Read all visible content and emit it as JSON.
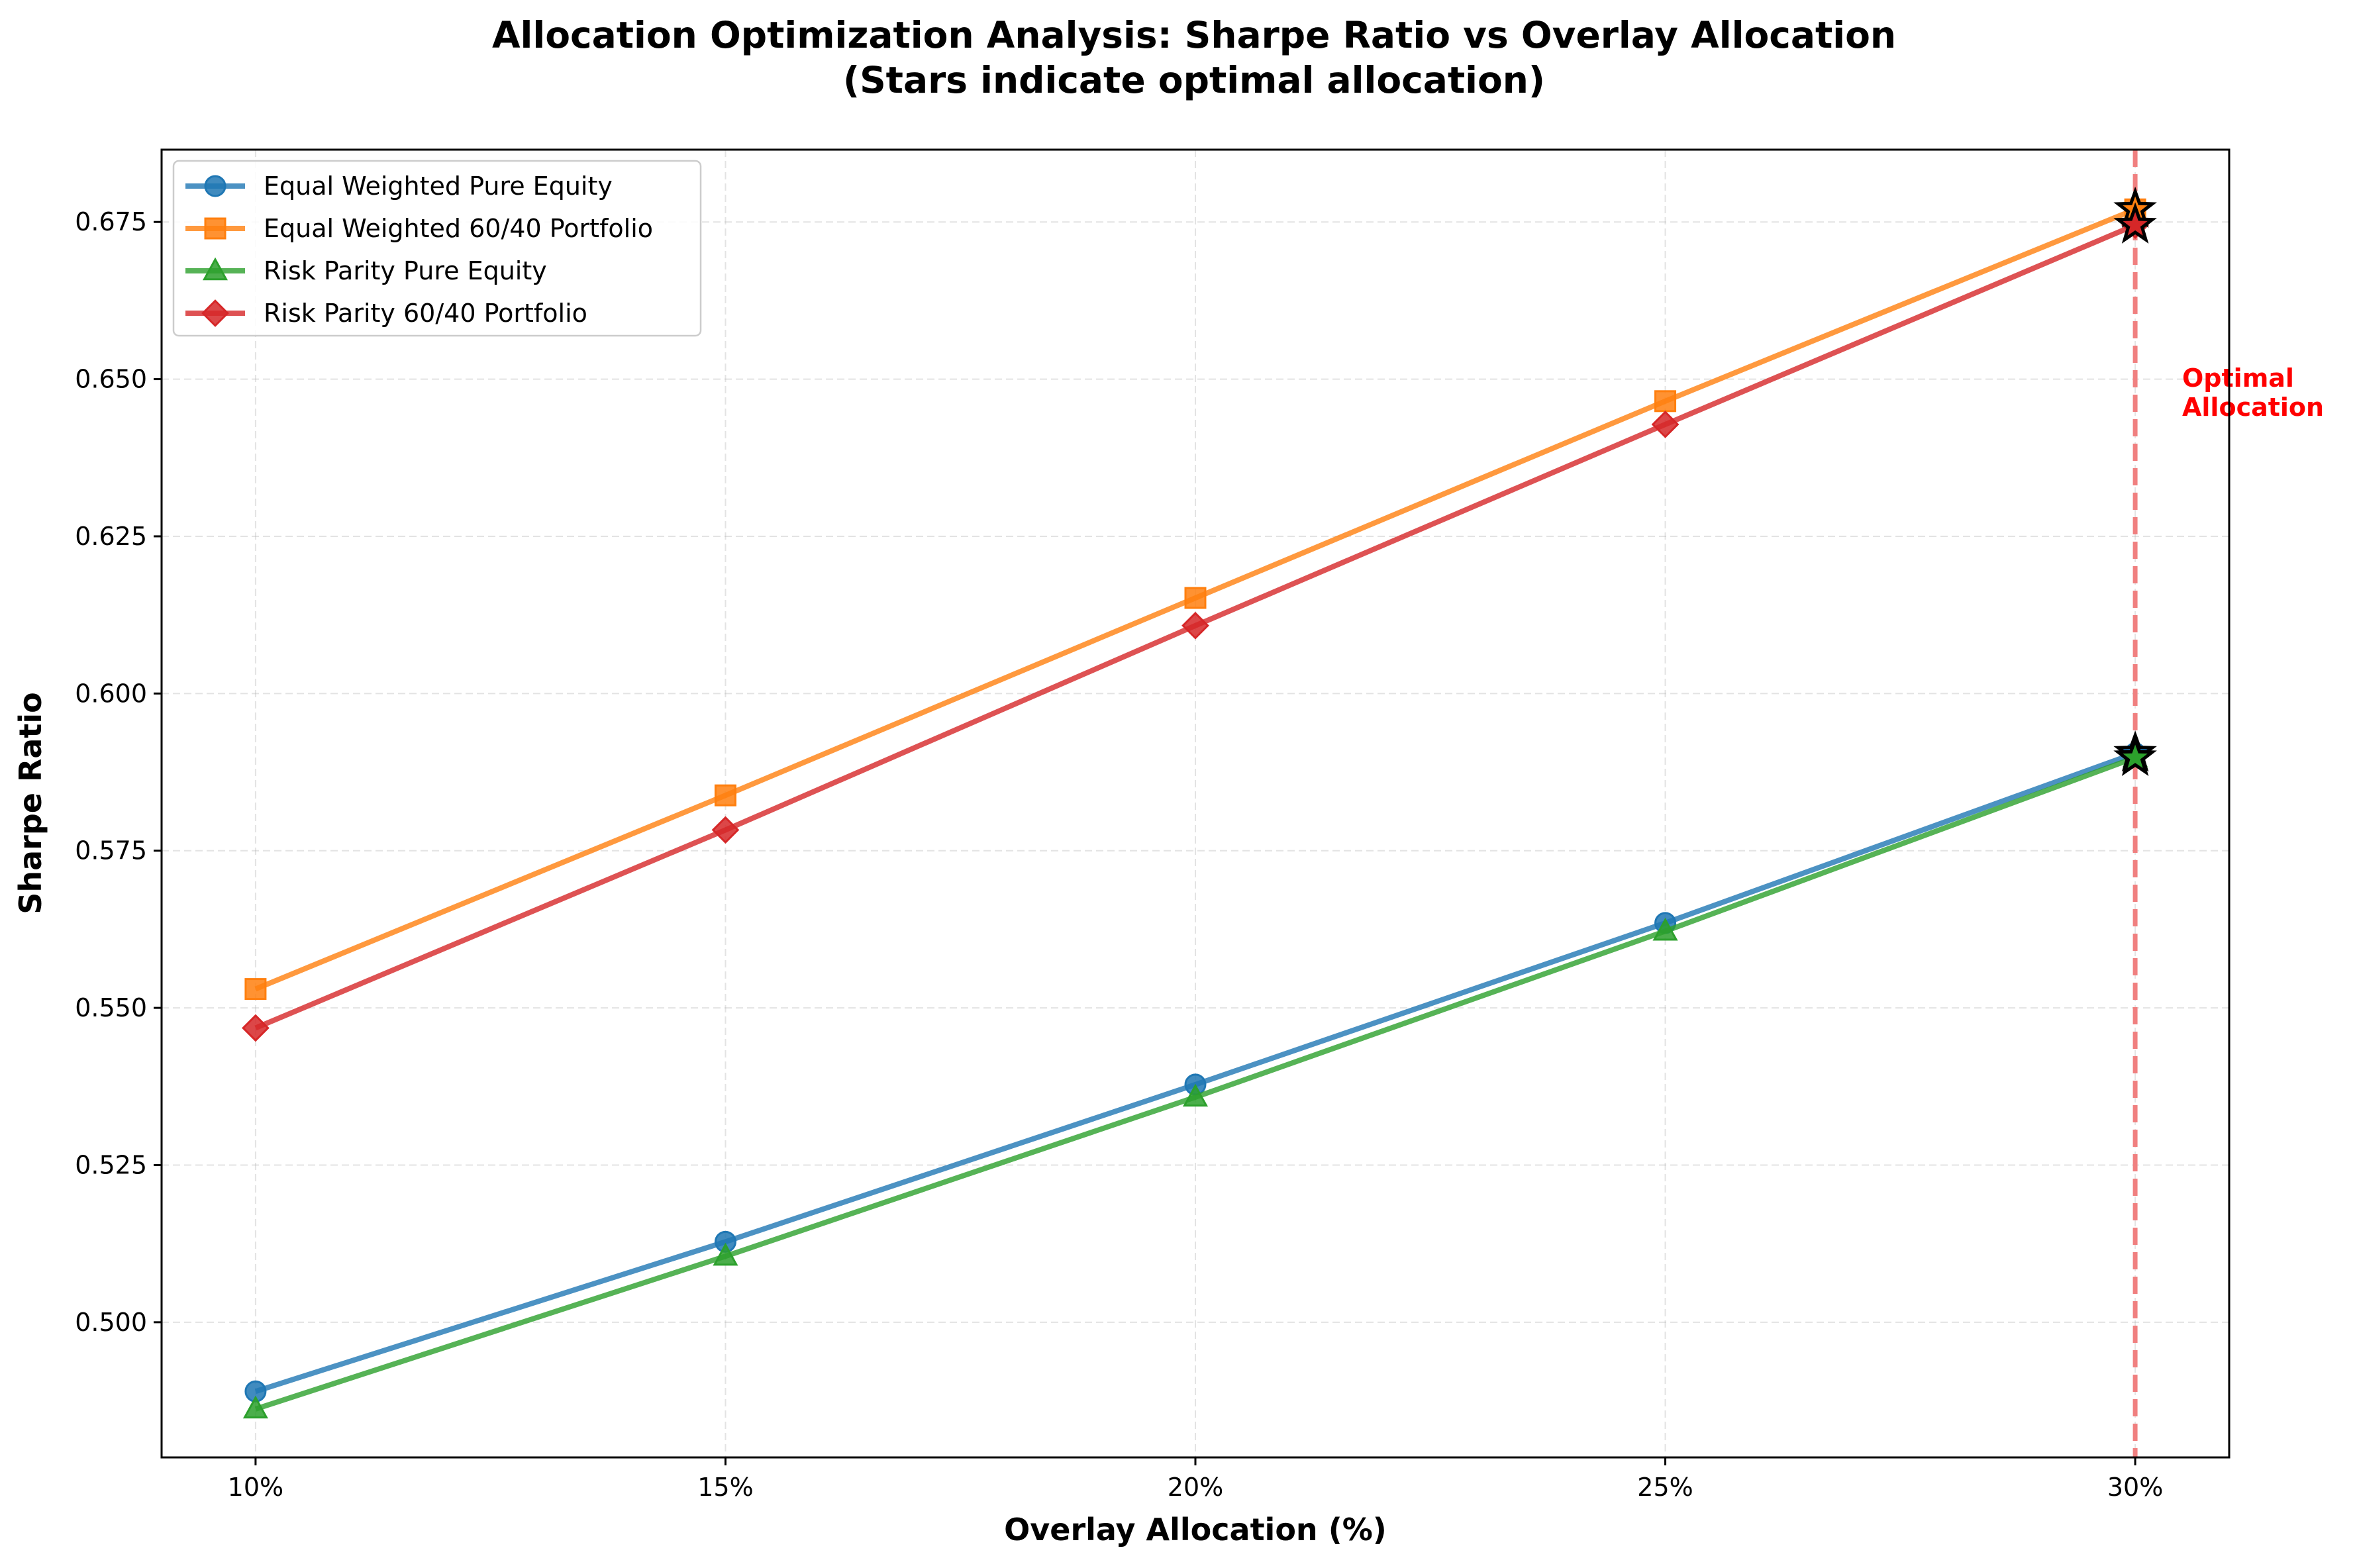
{
  "chart_data": {
    "type": "line",
    "title": "Allocation Optimization Analysis: Sharpe Ratio vs Overlay Allocation",
    "subtitle": "(Stars indicate optimal allocation)",
    "xlabel": "Overlay Allocation (%)",
    "ylabel": "Sharpe Ratio",
    "x": [
      10,
      15,
      20,
      25,
      30
    ],
    "x_tick_labels": [
      "10%",
      "15%",
      "20%",
      "25%",
      "30%"
    ],
    "xlim": [
      9,
      31
    ],
    "ylim": [
      0.4785,
      0.6865
    ],
    "y_ticks": [
      0.5,
      0.525,
      0.55,
      0.575,
      0.6,
      0.625,
      0.65,
      0.675
    ],
    "y_tick_labels": [
      "0.500",
      "0.525",
      "0.550",
      "0.575",
      "0.600",
      "0.625",
      "0.650",
      "0.675"
    ],
    "grid": true,
    "legend_position": "top-left",
    "series": [
      {
        "name": "Equal Weighted Pure Equity",
        "color": "#1f77b4",
        "marker": "circle",
        "values": [
          0.489,
          0.5128,
          0.5378,
          0.5635,
          0.5905
        ]
      },
      {
        "name": "Equal Weighted 60/40 Portfolio",
        "color": "#ff7f0e",
        "marker": "square",
        "values": [
          0.553,
          0.5838,
          0.6152,
          0.6465,
          0.677
        ]
      },
      {
        "name": "Risk Parity Pure Equity",
        "color": "#2ca02c",
        "marker": "triangle",
        "values": [
          0.4862,
          0.5105,
          0.5358,
          0.5622,
          0.5898
        ]
      },
      {
        "name": "Risk Parity 60/40 Portfolio",
        "color": "#d62728",
        "marker": "diamond",
        "values": [
          0.5468,
          0.5783,
          0.6108,
          0.6428,
          0.6745
        ]
      }
    ],
    "optimal": {
      "x": 30,
      "marker": "star",
      "line_color": "#f08080",
      "label_line1": "Optimal",
      "label_line2": "Allocation",
      "label_color": "#ff0000"
    }
  }
}
